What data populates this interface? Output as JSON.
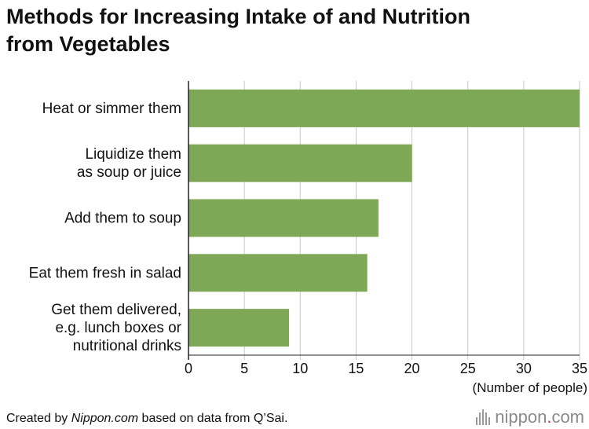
{
  "title": {
    "line1": "Methods for Increasing Intake of and Nutrition",
    "line2": "from Vegetables"
  },
  "chart_data": {
    "type": "bar",
    "orientation": "horizontal",
    "categories": [
      [
        "Heat or simmer them"
      ],
      [
        "Liquidize them",
        "as soup or juice"
      ],
      [
        "Add them to soup"
      ],
      [
        "Eat them fresh in salad"
      ],
      [
        "Get them delivered,",
        "e.g. lunch boxes or",
        "nutritional drinks"
      ]
    ],
    "values": [
      35,
      20,
      17,
      16,
      9
    ],
    "xlim": [
      0,
      35
    ],
    "xticks": [
      0,
      5,
      10,
      15,
      20,
      25,
      30,
      35
    ],
    "xlabel": "(Number of people)",
    "grid": true,
    "colors": {
      "bar": "#7fa856",
      "grid": "#c8c8c8",
      "axis": "#222222"
    }
  },
  "footer": {
    "source_prefix": "Created by ",
    "source_italic": "Nippon.com",
    "source_suffix": " based on data from Q’Sai."
  },
  "brand": {
    "name": "nippon",
    "dot": ".",
    "suffix": "com",
    "icon": "nippon-bars-logo"
  }
}
